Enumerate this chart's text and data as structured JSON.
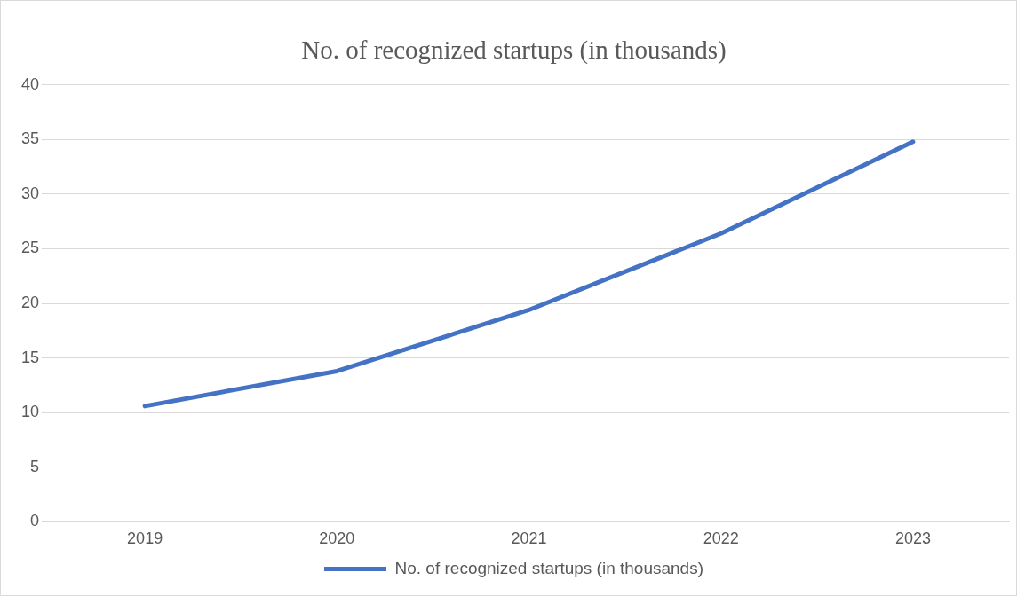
{
  "chart_data": {
    "type": "line",
    "title": "No. of recognized startups (in thousands)",
    "categories": [
      "2019",
      "2020",
      "2021",
      "2022",
      "2023"
    ],
    "series": [
      {
        "name": "No. of recognized startups (in thousands)",
        "color": "#4472c4",
        "values": [
          10.6,
          13.8,
          19.4,
          26.4,
          34.8
        ]
      }
    ],
    "ylim": [
      0,
      40
    ],
    "yticks": [
      0,
      5,
      10,
      15,
      20,
      25,
      30,
      35,
      40
    ],
    "grid": "y",
    "legend": "bottom",
    "marker": "none",
    "line_style": "solid"
  }
}
